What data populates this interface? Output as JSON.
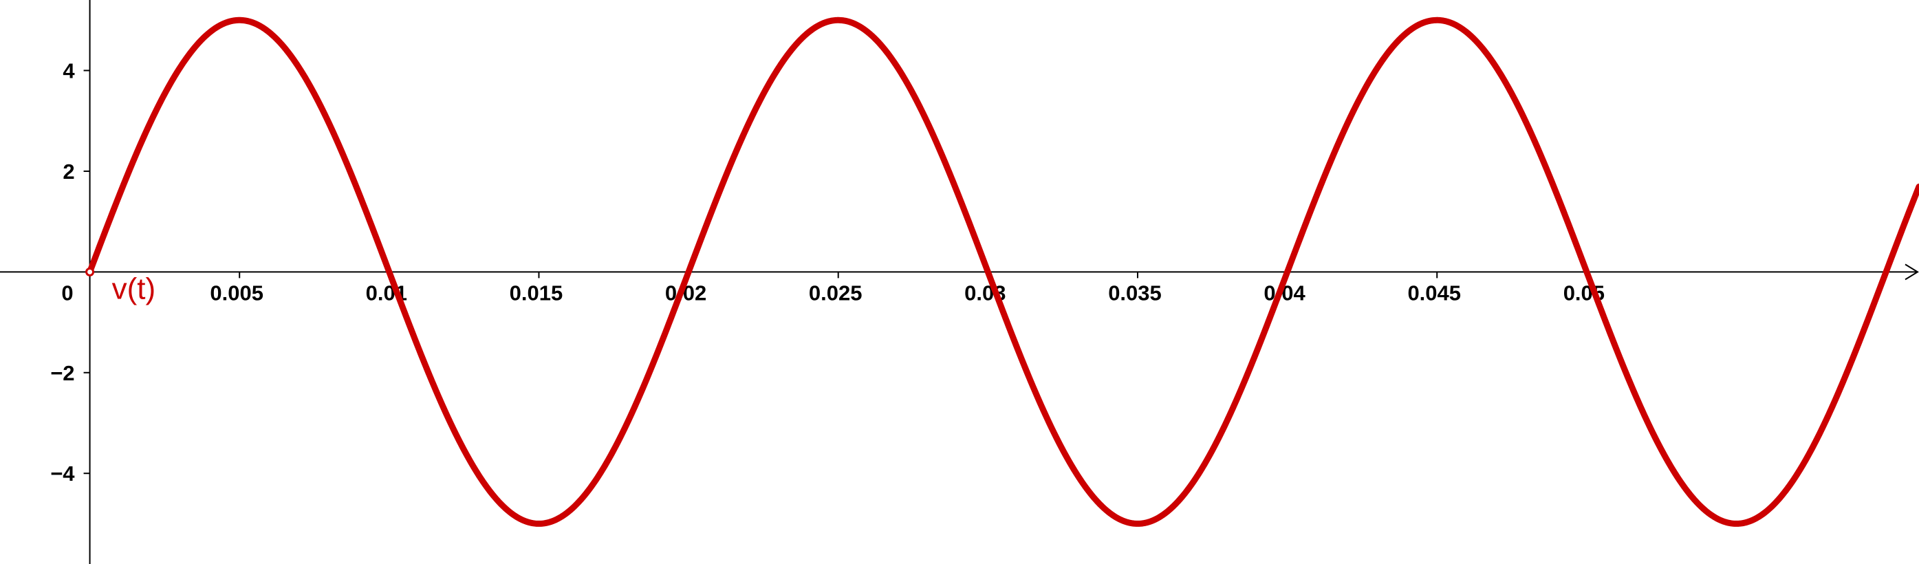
{
  "chart_data": {
    "type": "line",
    "title": "",
    "xlabel": "",
    "ylabel": "",
    "xlim": [
      -0.003,
      0.0611
    ],
    "ylim": [
      -5.8,
      5.4
    ],
    "grid": false,
    "series": [
      {
        "name": "v(t)",
        "function": "5*sin(2*pi*50*t)",
        "amplitude": 5,
        "frequency_hz": 50,
        "color": "#cc0000",
        "x": [
          0,
          0.005,
          0.01,
          0.015,
          0.02,
          0.025,
          0.03,
          0.035,
          0.04,
          0.045,
          0.05,
          0.055
        ],
        "y": [
          0,
          5,
          0,
          -5,
          0,
          5,
          0,
          -5,
          0,
          5,
          0,
          -5
        ]
      }
    ],
    "x_ticks": [
      {
        "value": 0.005,
        "label": "0.005"
      },
      {
        "value": 0.01,
        "label": "0.01"
      },
      {
        "value": 0.015,
        "label": "0.015"
      },
      {
        "value": 0.02,
        "label": "0.02"
      },
      {
        "value": 0.025,
        "label": "0.025"
      },
      {
        "value": 0.03,
        "label": "0.03"
      },
      {
        "value": 0.035,
        "label": "0.035"
      },
      {
        "value": 0.04,
        "label": "0.04"
      },
      {
        "value": 0.045,
        "label": "0.045"
      },
      {
        "value": 0.05,
        "label": "0.05"
      }
    ],
    "y_ticks": [
      {
        "value": 4,
        "label": "4"
      },
      {
        "value": 2,
        "label": "2"
      },
      {
        "value": -2,
        "label": "−2"
      },
      {
        "value": -4,
        "label": "−4"
      }
    ],
    "origin_label": "0",
    "function_label": "v(t)",
    "axis_color": "#000000"
  }
}
